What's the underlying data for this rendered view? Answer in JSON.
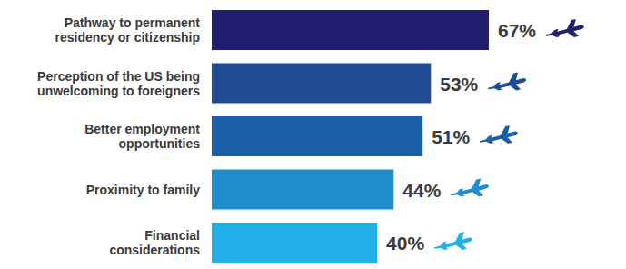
{
  "chart_data": {
    "type": "bar",
    "orientation": "horizontal",
    "categories": [
      "Pathway to permanent residency or citizenship",
      "Perception of the US being unwelcoming to foreigners",
      "Better employment opportunities",
      "Proximity to family",
      "Financial considerations"
    ],
    "values": [
      67,
      53,
      51,
      44,
      40
    ],
    "value_labels": [
      "67%",
      "53%",
      "51%",
      "44%",
      "40%"
    ],
    "colors": [
      "#221e6e",
      "#1e4b91",
      "#1a5fa7",
      "#1f8dcc",
      "#21b0e7"
    ],
    "data_labels": true,
    "tick_labels": false,
    "grid": false
  }
}
